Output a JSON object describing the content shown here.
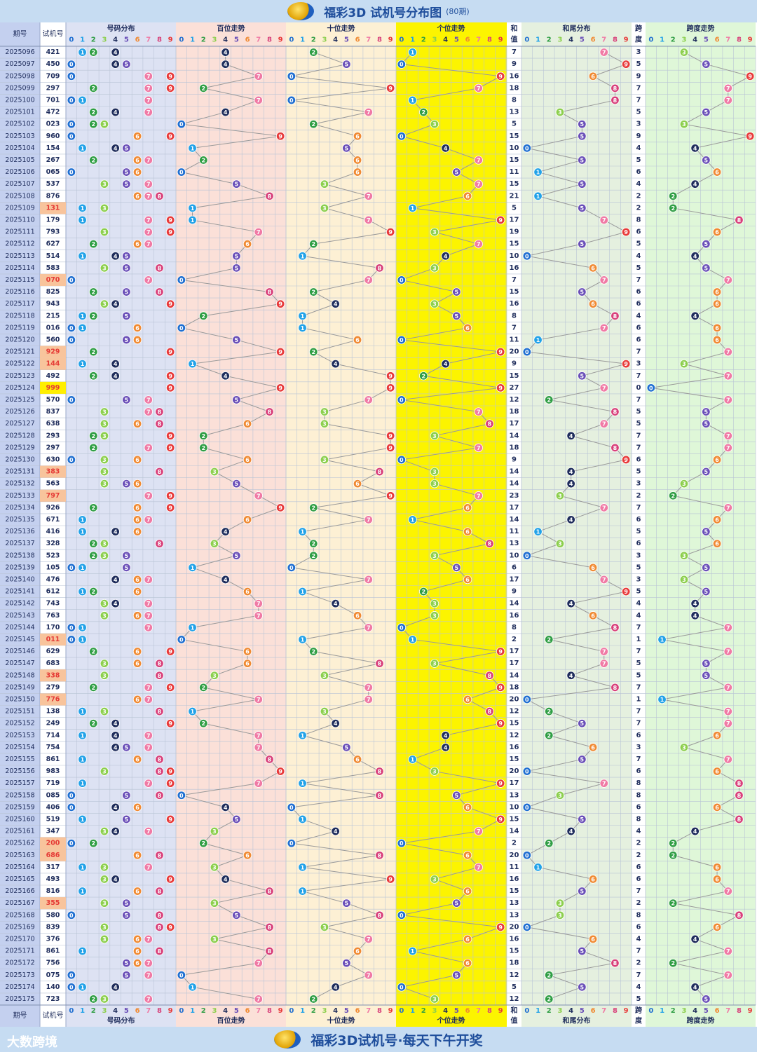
{
  "header": {
    "title": "福彩3D 试机号分布图",
    "subtitle": "(80期)"
  },
  "footer": {
    "brand": "大数跨境",
    "slogan": "福彩3D试机号·每天下午开奖"
  },
  "colors": {
    "digit": [
      "#1f6fd1",
      "#22a2e8",
      "#2f9e44",
      "#8ccf4d",
      "#1f2d5c",
      "#6a4fb8",
      "#f08a33",
      "#f07aa5",
      "#d8407a",
      "#e83a3a"
    ],
    "bg_dist": "#dde2f3",
    "bg_hundreds": "#fbe0d8",
    "bg_tens": "#fdf0d4",
    "bg_units": "#fcf400",
    "bg_sum": "#ffffff",
    "bg_sumtail": "#e5f0df",
    "bg_span": "#dff7d8",
    "highlight_repeat": "#f8c49c",
    "highlight_triple": "#ffef00",
    "id_column": "#c4d0ef"
  },
  "chart_data": {
    "type": "table",
    "title": "福彩3D 试机号分布图",
    "subtitle": "(80期)",
    "headers": {
      "period": "期号",
      "number": "试机号",
      "distribution": "号码分布",
      "hundreds": "百位走势",
      "tens": "十位走势",
      "units": "个位走势",
      "sum_top": "和",
      "sum_bottom": "值",
      "sum_tail": "和尾分布",
      "span_top": "跨",
      "span_bottom": "度",
      "span_trend": "跨度走势",
      "digits": [
        "0",
        "1",
        "2",
        "3",
        "4",
        "5",
        "6",
        "7",
        "8",
        "9"
      ]
    },
    "rows": [
      [
        "2025096",
        "421"
      ],
      [
        "2025097",
        "450"
      ],
      [
        "2025098",
        "709"
      ],
      [
        "2025099",
        "297"
      ],
      [
        "2025100",
        "701"
      ],
      [
        "2025101",
        "472"
      ],
      [
        "2025102",
        "023"
      ],
      [
        "2025103",
        "960"
      ],
      [
        "2025104",
        "154"
      ],
      [
        "2025105",
        "267"
      ],
      [
        "2025106",
        "065"
      ],
      [
        "2025107",
        "537"
      ],
      [
        "2025108",
        "876"
      ],
      [
        "2025109",
        "131"
      ],
      [
        "2025110",
        "179"
      ],
      [
        "2025111",
        "793"
      ],
      [
        "2025112",
        "627"
      ],
      [
        "2025113",
        "514"
      ],
      [
        "2025114",
        "583"
      ],
      [
        "2025115",
        "070"
      ],
      [
        "2025116",
        "825"
      ],
      [
        "2025117",
        "943"
      ],
      [
        "2025118",
        "215"
      ],
      [
        "2025119",
        "016"
      ],
      [
        "2025120",
        "560"
      ],
      [
        "2025121",
        "929"
      ],
      [
        "2025122",
        "144"
      ],
      [
        "2025123",
        "492"
      ],
      [
        "2025124",
        "999"
      ],
      [
        "2025125",
        "570"
      ],
      [
        "2025126",
        "837"
      ],
      [
        "2025127",
        "638"
      ],
      [
        "2025128",
        "293"
      ],
      [
        "2025129",
        "297"
      ],
      [
        "2025130",
        "630"
      ],
      [
        "2025131",
        "383"
      ],
      [
        "2025132",
        "563"
      ],
      [
        "2025133",
        "797"
      ],
      [
        "2025134",
        "926"
      ],
      [
        "2025135",
        "671"
      ],
      [
        "2025136",
        "416"
      ],
      [
        "2025137",
        "328"
      ],
      [
        "2025138",
        "523"
      ],
      [
        "2025139",
        "105"
      ],
      [
        "2025140",
        "476"
      ],
      [
        "2025141",
        "612"
      ],
      [
        "2025142",
        "743"
      ],
      [
        "2025143",
        "763"
      ],
      [
        "2025144",
        "170"
      ],
      [
        "2025145",
        "011"
      ],
      [
        "2025146",
        "629"
      ],
      [
        "2025147",
        "683"
      ],
      [
        "2025148",
        "338"
      ],
      [
        "2025149",
        "279"
      ],
      [
        "2025150",
        "776"
      ],
      [
        "2025151",
        "138"
      ],
      [
        "2025152",
        "249"
      ],
      [
        "2025153",
        "714"
      ],
      [
        "2025154",
        "754"
      ],
      [
        "2025155",
        "861"
      ],
      [
        "2025156",
        "983"
      ],
      [
        "2025157",
        "719"
      ],
      [
        "2025158",
        "085"
      ],
      [
        "2025159",
        "406"
      ],
      [
        "2025160",
        "519"
      ],
      [
        "2025161",
        "347"
      ],
      [
        "2025162",
        "200"
      ],
      [
        "2025163",
        "686"
      ],
      [
        "2025164",
        "317"
      ],
      [
        "2025165",
        "493"
      ],
      [
        "2025166",
        "816"
      ],
      [
        "2025167",
        "355"
      ],
      [
        "2025168",
        "580"
      ],
      [
        "2025169",
        "839"
      ],
      [
        "2025170",
        "376"
      ],
      [
        "2025171",
        "861"
      ],
      [
        "2025172",
        "756"
      ],
      [
        "2025173",
        "075"
      ],
      [
        "2025174",
        "140"
      ],
      [
        "2025175",
        "723"
      ]
    ],
    "sums": [
      7,
      9,
      16,
      18,
      8,
      13,
      5,
      15,
      10,
      15,
      11,
      15,
      21,
      5,
      17,
      19,
      15,
      10,
      16,
      7,
      15,
      16,
      8,
      7,
      11,
      20,
      9,
      15,
      27,
      12,
      18,
      17,
      14,
      18,
      9,
      14,
      14,
      23,
      17,
      14,
      11,
      13,
      10,
      6,
      17,
      9,
      14,
      16,
      8,
      2,
      17,
      17,
      14,
      18,
      20,
      12,
      15,
      12,
      16,
      15,
      20,
      17,
      13,
      10,
      15,
      14,
      2,
      20,
      11,
      16,
      15,
      13,
      13,
      20,
      16,
      15,
      18,
      12,
      5,
      12
    ],
    "spans": [
      3,
      5,
      9,
      7,
      7,
      5,
      3,
      9,
      4,
      5,
      6,
      4,
      2,
      2,
      8,
      6,
      5,
      4,
      5,
      7,
      6,
      6,
      4,
      6,
      6,
      7,
      3,
      7,
      0,
      7,
      5,
      5,
      7,
      7,
      6,
      5,
      3,
      2,
      7,
      6,
      5,
      6,
      3,
      5,
      3,
      5,
      4,
      4,
      7,
      1,
      7,
      5,
      5,
      7,
      1,
      7,
      7,
      6,
      3,
      7,
      6,
      8,
      8,
      6,
      8,
      4,
      2,
      2,
      6,
      6,
      7,
      2,
      8,
      6,
      4,
      7,
      2,
      7,
      4,
      5
    ]
  }
}
